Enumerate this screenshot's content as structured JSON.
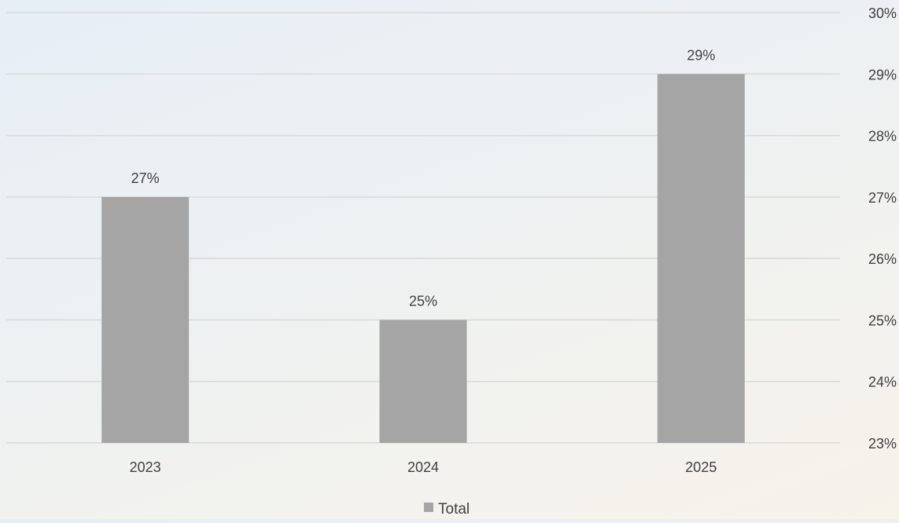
{
  "chart_data": {
    "type": "bar",
    "categories": [
      "2023",
      "2024",
      "2025"
    ],
    "series": [
      {
        "name": "Total",
        "values": [
          27,
          25,
          29
        ]
      }
    ],
    "data_labels": [
      "27%",
      "25%",
      "29%"
    ],
    "y_axis": {
      "position": "right",
      "min": 23,
      "max": 30,
      "ticks": [
        23,
        24,
        25,
        26,
        27,
        28,
        29,
        30
      ],
      "tick_labels": [
        "23%",
        "24%",
        "25%",
        "26%",
        "27%",
        "28%",
        "29%",
        "30%"
      ]
    },
    "grid": true,
    "legend": {
      "position": "bottom",
      "entries": [
        "Total"
      ]
    },
    "colors": {
      "bar": "#a5a5a5",
      "grid": "#d9d9d9",
      "text": "#404040"
    }
  }
}
